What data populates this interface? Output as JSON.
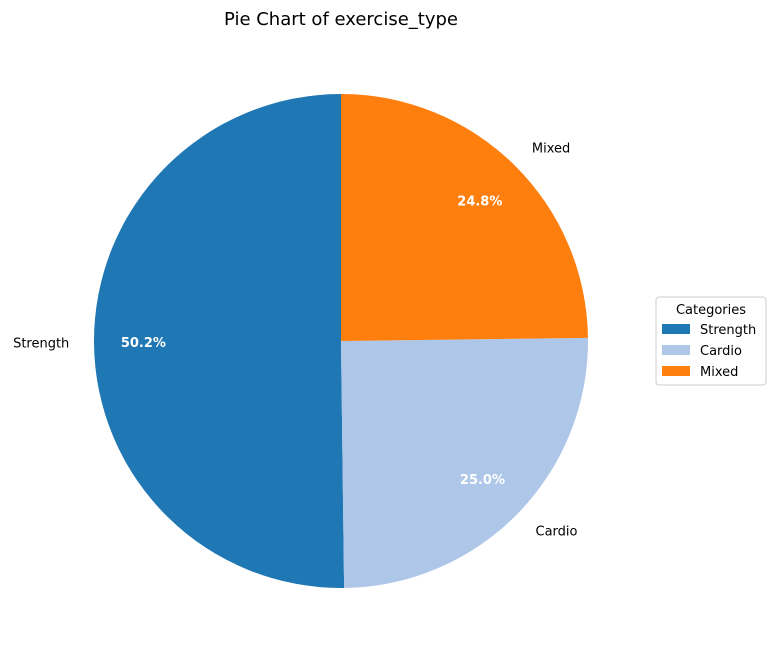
{
  "chart_data": {
    "type": "pie",
    "title": "Pie Chart of exercise_type",
    "categories": [
      "Strength",
      "Cardio",
      "Mixed"
    ],
    "values": [
      50.2,
      25.0,
      24.8
    ],
    "percent_labels": [
      "50.2%",
      "25.0%",
      "24.8%"
    ],
    "colors": [
      "#1f77b4",
      "#aec7e8",
      "#ff7f0e"
    ],
    "start_angle_deg": 90,
    "direction": "counterclockwise",
    "legend": {
      "title": "Categories",
      "entries": [
        "Strength",
        "Cardio",
        "Mixed"
      ],
      "placement": "center-right"
    }
  }
}
